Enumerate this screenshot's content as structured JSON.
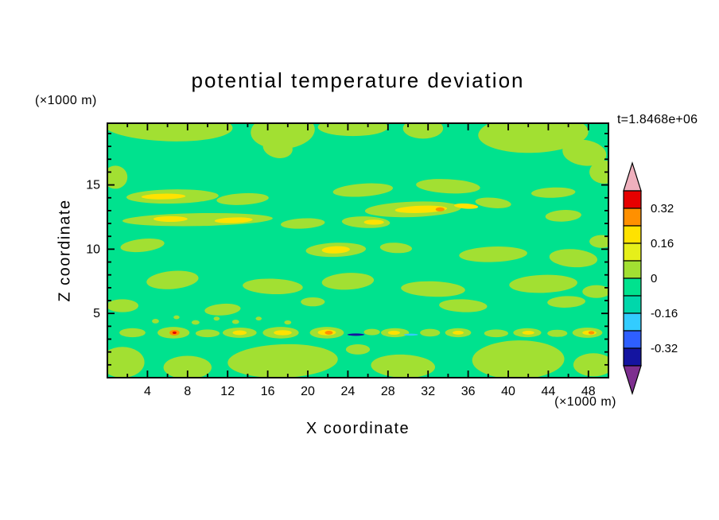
{
  "chart_data": {
    "type": "heatmap",
    "title": "potential temperature deviation",
    "time_annotation": "t=1.8468e+06",
    "xlabel": "X coordinate",
    "ylabel": "Z coordinate",
    "x_unit": "(×1000 m)",
    "y_unit": "(×1000 m)",
    "xlim": [
      0,
      50
    ],
    "ylim": [
      0,
      19.8
    ],
    "x_major_ticks": [
      4,
      8,
      12,
      16,
      20,
      24,
      28,
      32,
      36,
      40,
      44,
      48
    ],
    "x_minor_step": 2,
    "y_major_ticks": [
      5,
      10,
      15
    ],
    "y_minor_step": 1,
    "grid": false,
    "colorbar": {
      "orientation": "vertical",
      "levels": [
        0.4,
        0.32,
        0.24,
        0.16,
        0.08,
        0,
        -0.08,
        -0.16,
        -0.24,
        -0.32,
        -0.4
      ],
      "band_colors": [
        "#e60000",
        "#ff9000",
        "#ffe200",
        "#e6ef1a",
        "#a2e032",
        "#00e28e",
        "#00d7ab",
        "#33ccff",
        "#2e5fff",
        "#1414a0"
      ],
      "over_color": "#efb0bd",
      "under_color": "#7d2f8f",
      "labels": [
        {
          "text": "0.32",
          "boundary_index": 1
        },
        {
          "text": "0.16",
          "boundary_index": 3
        },
        {
          "text": "0",
          "boundary_index": 5
        },
        {
          "text": "-0.16",
          "boundary_index": 7
        },
        {
          "text": "-0.32",
          "boundary_index": 9
        }
      ]
    },
    "palette": {
      "gy": "#a2e032",
      "yl": "#ffe200",
      "or": "#ff9000",
      "rd": "#e60000",
      "cy": "#33ccff",
      "bl": "#2e5fff",
      "nv": "#1414a0"
    },
    "field": {
      "background_color": "#00e28e",
      "background_band": "-0.08 to 0",
      "features": [
        {
          "c": "gy",
          "x": 6,
          "z": 19.6,
          "rx": 6.5,
          "rz": 1.2,
          "r": 2
        },
        {
          "c": "gy",
          "x": 17.5,
          "z": 19.2,
          "rx": 3.2,
          "rz": 1.4,
          "r": -4
        },
        {
          "c": "gy",
          "x": 17.0,
          "z": 17.9,
          "rx": 1.5,
          "rz": 0.8,
          "r": 12
        },
        {
          "c": "gy",
          "x": 24.5,
          "z": 19.5,
          "rx": 3.5,
          "rz": 0.7,
          "r": 0
        },
        {
          "c": "gy",
          "x": 31.5,
          "z": 19.4,
          "rx": 2.0,
          "rz": 0.8,
          "r": 0
        },
        {
          "c": "gy",
          "x": 42.5,
          "z": 19.0,
          "rx": 5.5,
          "rz": 1.5,
          "r": -2
        },
        {
          "c": "gy",
          "x": 47.6,
          "z": 17.5,
          "rx": 2.2,
          "rz": 1.0,
          "r": 8
        },
        {
          "c": "gy",
          "x": 49.6,
          "z": 16.0,
          "rx": 1.5,
          "rz": 0.9,
          "r": 0
        },
        {
          "c": "gy",
          "x": 0.8,
          "z": 15.6,
          "rx": 1.2,
          "rz": 0.9,
          "r": 0
        },
        {
          "c": "gy",
          "x": 6.5,
          "z": 14.1,
          "rx": 4.6,
          "rz": 0.55,
          "r": -1
        },
        {
          "c": "gy",
          "x": 13.5,
          "z": 13.9,
          "rx": 2.6,
          "rz": 0.45,
          "r": -3
        },
        {
          "c": "gy",
          "x": 25.5,
          "z": 14.6,
          "rx": 3.0,
          "rz": 0.5,
          "r": -4
        },
        {
          "c": "gy",
          "x": 34,
          "z": 14.9,
          "rx": 3.2,
          "rz": 0.55,
          "r": 3
        },
        {
          "c": "gy",
          "x": 44.5,
          "z": 14.4,
          "rx": 2.2,
          "rz": 0.4,
          "r": -2
        },
        {
          "c": "gy",
          "x": 30.5,
          "z": 13.1,
          "rx": 4.8,
          "rz": 0.6,
          "r": -2
        },
        {
          "c": "gy",
          "x": 38.5,
          "z": 13.6,
          "rx": 1.8,
          "rz": 0.4,
          "r": 5
        },
        {
          "c": "gy",
          "x": 45.5,
          "z": 12.6,
          "rx": 1.8,
          "rz": 0.45,
          "r": -3
        },
        {
          "c": "gy",
          "x": 9,
          "z": 12.3,
          "rx": 7.5,
          "rz": 0.5,
          "r": -1
        },
        {
          "c": "gy",
          "x": 19.5,
          "z": 12.0,
          "rx": 2.2,
          "rz": 0.4,
          "r": -3
        },
        {
          "c": "gy",
          "x": 25.8,
          "z": 12.1,
          "rx": 2.4,
          "rz": 0.45,
          "r": 2
        },
        {
          "c": "gy",
          "x": 3.5,
          "z": 10.3,
          "rx": 2.2,
          "rz": 0.5,
          "r": -6
        },
        {
          "c": "gy",
          "x": 22.8,
          "z": 9.95,
          "rx": 3.0,
          "rz": 0.55,
          "r": -2
        },
        {
          "c": "gy",
          "x": 28.8,
          "z": 10.1,
          "rx": 1.6,
          "rz": 0.4,
          "r": 3
        },
        {
          "c": "gy",
          "x": 38.5,
          "z": 9.6,
          "rx": 3.4,
          "rz": 0.6,
          "r": -2
        },
        {
          "c": "gy",
          "x": 46.5,
          "z": 9.3,
          "rx": 2.4,
          "rz": 0.7,
          "r": 4
        },
        {
          "c": "gy",
          "x": 49.3,
          "z": 10.6,
          "rx": 1.2,
          "rz": 0.5,
          "r": 0
        },
        {
          "c": "gy",
          "x": 6.5,
          "z": 7.6,
          "rx": 2.6,
          "rz": 0.7,
          "r": -5
        },
        {
          "c": "gy",
          "x": 16.5,
          "z": 7.1,
          "rx": 3.0,
          "rz": 0.6,
          "r": 2
        },
        {
          "c": "gy",
          "x": 24.0,
          "z": 7.5,
          "rx": 2.6,
          "rz": 0.65,
          "r": -3
        },
        {
          "c": "gy",
          "x": 32.5,
          "z": 6.9,
          "rx": 3.2,
          "rz": 0.6,
          "r": 2
        },
        {
          "c": "gy",
          "x": 43.5,
          "z": 7.3,
          "rx": 3.4,
          "rz": 0.7,
          "r": -2
        },
        {
          "c": "gy",
          "x": 48.8,
          "z": 6.7,
          "rx": 1.4,
          "rz": 0.5,
          "r": 0
        },
        {
          "c": "gy",
          "x": 1.5,
          "z": 5.6,
          "rx": 1.6,
          "rz": 0.5,
          "r": 0
        },
        {
          "c": "gy",
          "x": 11.5,
          "z": 5.3,
          "rx": 1.8,
          "rz": 0.45,
          "r": -4
        },
        {
          "c": "gy",
          "x": 20.5,
          "z": 5.9,
          "rx": 1.2,
          "rz": 0.35,
          "r": 0
        },
        {
          "c": "gy",
          "x": 35.5,
          "z": 5.6,
          "rx": 2.4,
          "rz": 0.5,
          "r": 2
        },
        {
          "c": "gy",
          "x": 45.8,
          "z": 5.9,
          "rx": 1.9,
          "rz": 0.45,
          "r": -2
        },
        {
          "c": "gy",
          "x": 4.8,
          "z": 4.4,
          "rx": 0.35,
          "rz": 0.18,
          "r": 0
        },
        {
          "c": "gy",
          "x": 6.9,
          "z": 4.7,
          "rx": 0.3,
          "rz": 0.15,
          "r": 0
        },
        {
          "c": "gy",
          "x": 8.8,
          "z": 4.3,
          "rx": 0.4,
          "rz": 0.18,
          "r": 0
        },
        {
          "c": "gy",
          "x": 10.9,
          "z": 4.6,
          "rx": 0.3,
          "rz": 0.16,
          "r": 0
        },
        {
          "c": "gy",
          "x": 12.8,
          "z": 4.35,
          "rx": 0.35,
          "rz": 0.17,
          "r": 0
        },
        {
          "c": "gy",
          "x": 15.1,
          "z": 4.6,
          "rx": 0.3,
          "rz": 0.15,
          "r": 0
        },
        {
          "c": "gy",
          "x": 18.0,
          "z": 4.3,
          "rx": 0.35,
          "rz": 0.16,
          "r": 0
        },
        {
          "c": "gy",
          "x": 2.5,
          "z": 3.5,
          "rx": 1.3,
          "rz": 0.35,
          "r": 0
        },
        {
          "c": "gy",
          "x": 6.6,
          "z": 3.5,
          "rx": 1.6,
          "rz": 0.45,
          "r": 0
        },
        {
          "c": "gy",
          "x": 10,
          "z": 3.45,
          "rx": 1.2,
          "rz": 0.3,
          "r": 0
        },
        {
          "c": "gy",
          "x": 13.2,
          "z": 3.5,
          "rx": 1.7,
          "rz": 0.4,
          "r": 0
        },
        {
          "c": "gy",
          "x": 17.3,
          "z": 3.5,
          "rx": 1.8,
          "rz": 0.45,
          "r": 0
        },
        {
          "c": "gy",
          "x": 21.9,
          "z": 3.5,
          "rx": 1.7,
          "rz": 0.45,
          "r": 0
        },
        {
          "c": "gy",
          "x": 26.4,
          "z": 3.55,
          "rx": 0.8,
          "rz": 0.25,
          "r": 0
        },
        {
          "c": "gy",
          "x": 28.7,
          "z": 3.5,
          "rx": 1.4,
          "rz": 0.35,
          "r": 0
        },
        {
          "c": "gy",
          "x": 32.2,
          "z": 3.5,
          "rx": 1.0,
          "rz": 0.3,
          "r": 0
        },
        {
          "c": "gy",
          "x": 35.0,
          "z": 3.5,
          "rx": 1.3,
          "rz": 0.35,
          "r": 0
        },
        {
          "c": "gy",
          "x": 38.8,
          "z": 3.45,
          "rx": 1.2,
          "rz": 0.3,
          "r": 0
        },
        {
          "c": "gy",
          "x": 41.9,
          "z": 3.5,
          "rx": 1.4,
          "rz": 0.35,
          "r": 0
        },
        {
          "c": "gy",
          "x": 44.9,
          "z": 3.45,
          "rx": 1.0,
          "rz": 0.28,
          "r": 0
        },
        {
          "c": "gy",
          "x": 47.9,
          "z": 3.5,
          "rx": 1.5,
          "rz": 0.4,
          "r": 0
        },
        {
          "c": "gy",
          "x": 1.5,
          "z": 1.2,
          "rx": 2.2,
          "rz": 1.2,
          "r": 0
        },
        {
          "c": "gy",
          "x": 8.0,
          "z": 0.8,
          "rx": 2.4,
          "rz": 0.9,
          "r": 0
        },
        {
          "c": "gy",
          "x": 17.5,
          "z": 1.3,
          "rx": 5.5,
          "rz": 1.3,
          "r": -2
        },
        {
          "c": "gy",
          "x": 29.5,
          "z": 0.9,
          "rx": 3.2,
          "rz": 0.9,
          "r": 2
        },
        {
          "c": "gy",
          "x": 41.0,
          "z": 1.4,
          "rx": 4.6,
          "rz": 1.5,
          "r": -1
        },
        {
          "c": "gy",
          "x": 48.5,
          "z": 1.0,
          "rx": 2.0,
          "rz": 0.9,
          "r": 0
        },
        {
          "c": "gy",
          "x": 25.0,
          "z": 2.2,
          "rx": 1.2,
          "rz": 0.4,
          "r": 0
        },
        {
          "c": "yl",
          "x": 5.6,
          "z": 14.1,
          "rx": 2.2,
          "rz": 0.22,
          "r": -1
        },
        {
          "c": "yl",
          "x": 31.3,
          "z": 13.1,
          "rx": 2.6,
          "rz": 0.28,
          "r": -2
        },
        {
          "c": "yl",
          "x": 35.8,
          "z": 13.35,
          "rx": 1.2,
          "rz": 0.2,
          "r": 4
        },
        {
          "c": "yl",
          "x": 6.3,
          "z": 12.35,
          "rx": 1.7,
          "rz": 0.22,
          "r": 0
        },
        {
          "c": "yl",
          "x": 12.6,
          "z": 12.25,
          "rx": 1.9,
          "rz": 0.22,
          "r": -2
        },
        {
          "c": "yl",
          "x": 26.6,
          "z": 12.1,
          "rx": 1.0,
          "rz": 0.2,
          "r": 0
        },
        {
          "c": "yl",
          "x": 22.8,
          "z": 9.95,
          "rx": 1.4,
          "rz": 0.28,
          "r": -2
        },
        {
          "c": "yl",
          "x": 13.2,
          "z": 3.5,
          "rx": 0.7,
          "rz": 0.18,
          "r": 0
        },
        {
          "c": "yl",
          "x": 17.5,
          "z": 3.5,
          "rx": 0.9,
          "rz": 0.2,
          "r": 0
        },
        {
          "c": "yl",
          "x": 21.9,
          "z": 3.52,
          "rx": 0.9,
          "rz": 0.22,
          "r": 0
        },
        {
          "c": "yl",
          "x": 28.6,
          "z": 3.5,
          "rx": 0.6,
          "rz": 0.16,
          "r": 0
        },
        {
          "c": "yl",
          "x": 35.0,
          "z": 3.5,
          "rx": 0.55,
          "rz": 0.15,
          "r": 0
        },
        {
          "c": "yl",
          "x": 42.0,
          "z": 3.5,
          "rx": 0.6,
          "rz": 0.15,
          "r": 0
        },
        {
          "c": "yl",
          "x": 48.1,
          "z": 3.5,
          "rx": 0.7,
          "rz": 0.18,
          "r": 0
        },
        {
          "c": "or",
          "x": 33.2,
          "z": 13.1,
          "rx": 0.45,
          "rz": 0.16,
          "r": 0
        },
        {
          "c": "or",
          "x": 6.7,
          "z": 3.5,
          "rx": 0.5,
          "rz": 0.22,
          "r": 0
        },
        {
          "c": "or",
          "x": 22.1,
          "z": 3.5,
          "rx": 0.4,
          "rz": 0.15,
          "r": 0
        },
        {
          "c": "or",
          "x": 48.3,
          "z": 3.5,
          "rx": 0.3,
          "rz": 0.13,
          "r": 0
        },
        {
          "c": "rd",
          "x": 6.7,
          "z": 3.5,
          "rx": 0.2,
          "rz": 0.1,
          "r": 0
        },
        {
          "c": "nv",
          "x": 24.8,
          "z": 3.35,
          "rx": 0.85,
          "rz": 0.09,
          "r": 0
        },
        {
          "c": "cy",
          "x": 30.3,
          "z": 3.35,
          "rx": 0.7,
          "rz": 0.08,
          "r": 0
        }
      ]
    }
  }
}
